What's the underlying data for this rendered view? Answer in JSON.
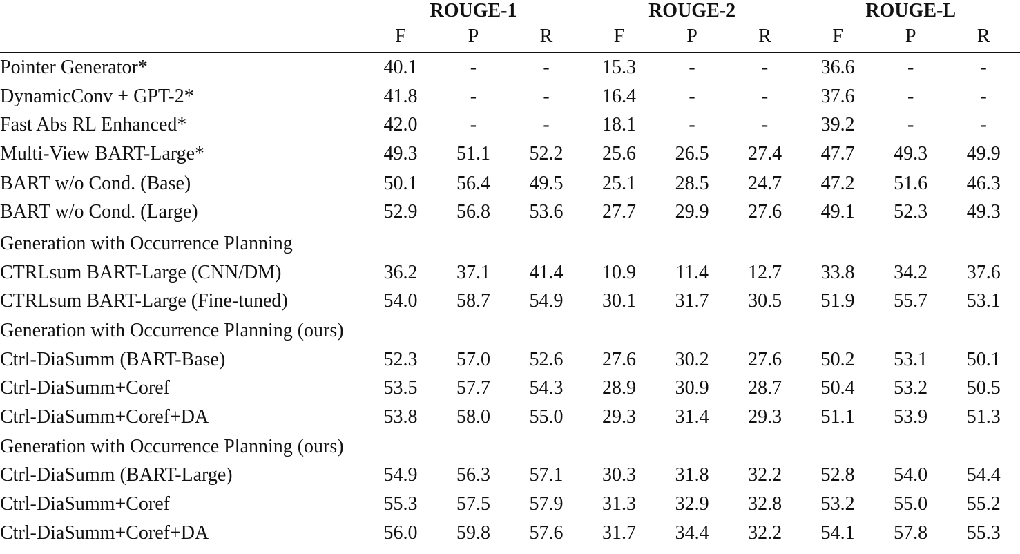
{
  "table": {
    "groups": [
      "ROUGE-1",
      "ROUGE-2",
      "ROUGE-L"
    ],
    "subheaders": [
      "F",
      "P",
      "R",
      "F",
      "P",
      "R",
      "F",
      "P",
      "R"
    ],
    "sections": [
      {
        "title": "",
        "rows": [
          {
            "name": "Pointer Generator*",
            "values": [
              "40.1",
              "-",
              "-",
              "15.3",
              "-",
              "-",
              "36.6",
              "-",
              "-"
            ]
          },
          {
            "name": "DynamicConv + GPT-2*",
            "values": [
              "41.8",
              "-",
              "-",
              "16.4",
              "-",
              "-",
              "37.6",
              "-",
              "-"
            ]
          },
          {
            "name": "Fast Abs RL Enhanced*",
            "values": [
              "42.0",
              "-",
              "-",
              "18.1",
              "-",
              "-",
              "39.2",
              "-",
              "-"
            ]
          },
          {
            "name": "Multi-View BART-Large*",
            "values": [
              "49.3",
              "51.1",
              "52.2",
              "25.6",
              "26.5",
              "27.4",
              "47.7",
              "49.3",
              "49.9"
            ]
          }
        ]
      },
      {
        "title": "",
        "rows": [
          {
            "name": "BART w/o Cond. (Base)",
            "values": [
              "50.1",
              "56.4",
              "49.5",
              "25.1",
              "28.5",
              "24.7",
              "47.2",
              "51.6",
              "46.3"
            ]
          },
          {
            "name": "BART w/o Cond. (Large)",
            "values": [
              "52.9",
              "56.8",
              "53.6",
              "27.7",
              "29.9",
              "27.6",
              "49.1",
              "52.3",
              "49.3"
            ]
          }
        ]
      },
      {
        "title": "Generation with Occurrence Planning",
        "rows": [
          {
            "name": "CTRLsum BART-Large (CNN/DM)",
            "values": [
              "36.2",
              "37.1",
              "41.4",
              "10.9",
              "11.4",
              "12.7",
              "33.8",
              "34.2",
              "37.6"
            ]
          },
          {
            "name": "CTRLsum BART-Large (Fine-tuned)",
            "values": [
              "54.0",
              "58.7",
              "54.9",
              "30.1",
              "31.7",
              "30.5",
              "51.9",
              "55.7",
              "53.1"
            ]
          }
        ]
      },
      {
        "title": "Generation with Occurrence Planning (ours)",
        "rows": [
          {
            "name": "Ctrl-DiaSumm (BART-Base)",
            "values": [
              "52.3",
              "57.0",
              "52.6",
              "27.6",
              "30.2",
              "27.6",
              "50.2",
              "53.1",
              "50.1"
            ]
          },
          {
            "name": "Ctrl-DiaSumm+Coref",
            "values": [
              "53.5",
              "57.7",
              "54.3",
              "28.9",
              "30.9",
              "28.7",
              "50.4",
              "53.2",
              "50.5"
            ]
          },
          {
            "name": "Ctrl-DiaSumm+Coref+DA",
            "values": [
              "53.8",
              "58.0",
              "55.0",
              "29.3",
              "31.4",
              "29.3",
              "51.1",
              "53.9",
              "51.3"
            ]
          }
        ]
      },
      {
        "title": "Generation with Occurrence Planning (ours)",
        "rows": [
          {
            "name": "Ctrl-DiaSumm (BART-Large)",
            "values": [
              "54.9",
              "56.3",
              "57.1",
              "30.3",
              "31.8",
              "32.2",
              "52.8",
              "54.0",
              "54.4"
            ]
          },
          {
            "name": "Ctrl-DiaSumm+Coref",
            "values": [
              "55.3",
              "57.5",
              "57.9",
              "31.3",
              "32.9",
              "32.8",
              "53.2",
              "55.0",
              "55.2"
            ]
          },
          {
            "name": "Ctrl-DiaSumm+Coref+DA",
            "values": [
              "56.0",
              "59.8",
              "57.6",
              "31.7",
              "34.4",
              "32.2",
              "54.1",
              "57.8",
              "55.3"
            ]
          }
        ]
      }
    ]
  }
}
